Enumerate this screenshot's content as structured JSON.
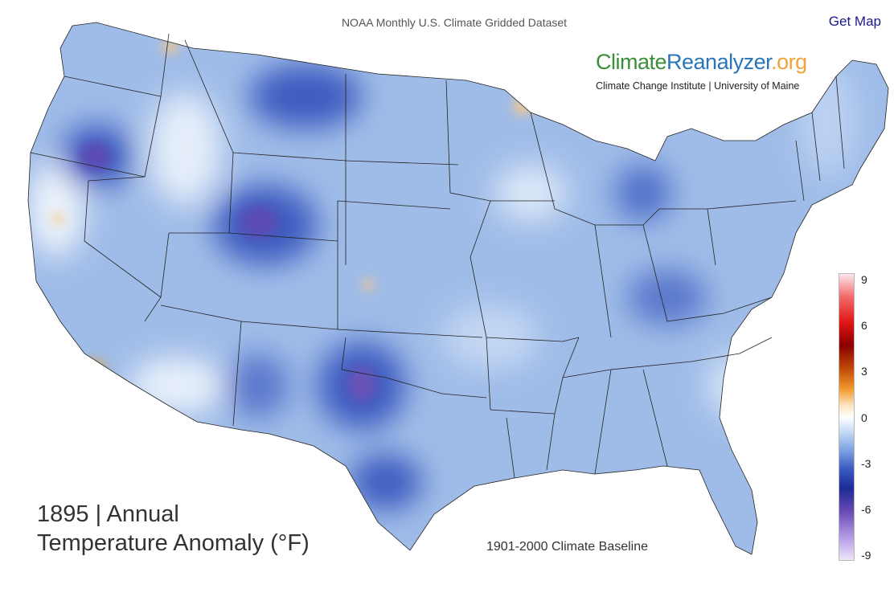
{
  "header": {
    "dataset_title": "NOAA Monthly U.S. Climate Gridded Dataset",
    "get_map_label": "Get Map"
  },
  "brand": {
    "part1": "Climate",
    "part2": "Reanalyzer",
    "part3": ".org",
    "subtitle": "Climate Change Institute | University of Maine"
  },
  "map": {
    "title_line1": "1895 | Annual",
    "title_line2": "Temperature Anomaly (°F)",
    "baseline": "1901-2000 Climate Baseline",
    "region": "Contiguous United States"
  },
  "legend": {
    "ticks": [
      "9",
      "6",
      "3",
      "0",
      "-3",
      "-6",
      "-9"
    ]
  },
  "colors": {
    "cold_extreme": "#1e2a96",
    "cold": "#3a5cc0",
    "cool": "#7a9ee0",
    "neutral": "#ffffff",
    "warm": "#f0962a",
    "hot": "#e01515"
  }
}
